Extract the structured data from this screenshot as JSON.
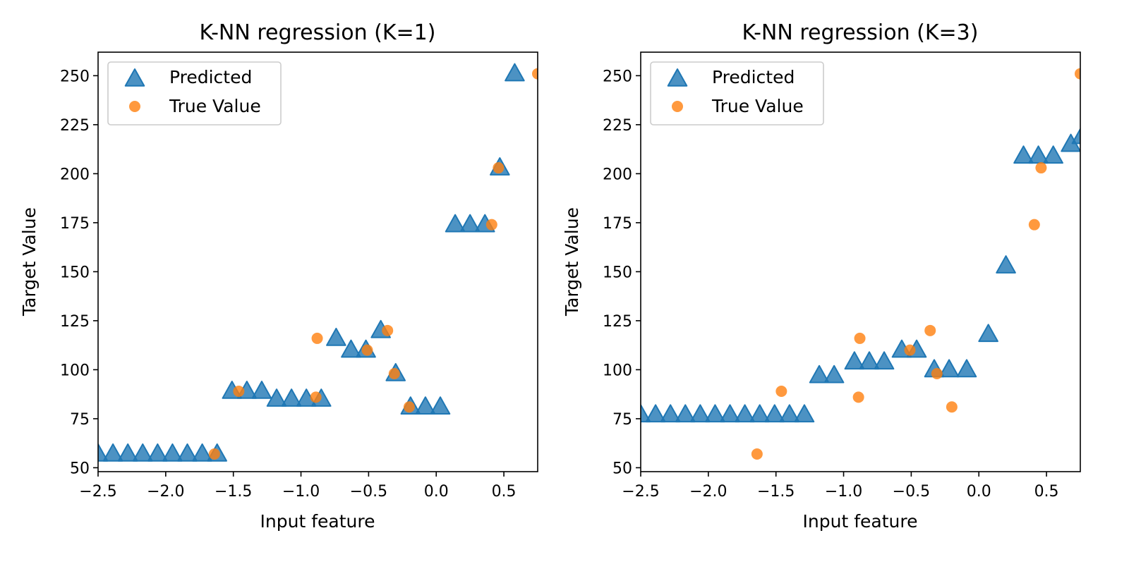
{
  "colors": {
    "predicted": "#1f77b4",
    "true_value": "#ff7f0e"
  },
  "chart_data": [
    {
      "type": "scatter",
      "title": "K-NN regression (K=1)",
      "xlabel": "Input feature",
      "ylabel": "Target Value",
      "xlim": [
        -2.5,
        0.75
      ],
      "ylim": [
        48,
        262
      ],
      "xticks": [
        -2.5,
        -2.0,
        -1.5,
        -1.0,
        -0.5,
        0.0,
        0.5
      ],
      "xtick_labels": [
        "−2.5",
        "−2.0",
        "−1.5",
        "−1.0",
        "−0.5",
        "0.0",
        "0.5"
      ],
      "yticks": [
        50,
        75,
        100,
        125,
        150,
        175,
        200,
        225,
        250
      ],
      "ytick_labels": [
        "50",
        "75",
        "100",
        "125",
        "150",
        "175",
        "200",
        "225",
        "250"
      ],
      "legend_position": "top-left",
      "series": [
        {
          "name": "Predicted",
          "marker": "triangle",
          "points": [
            [
              -2.5,
              57
            ],
            [
              -2.39,
              57
            ],
            [
              -2.28,
              57
            ],
            [
              -2.17,
              57
            ],
            [
              -2.06,
              57
            ],
            [
              -1.95,
              57
            ],
            [
              -1.84,
              57
            ],
            [
              -1.73,
              57
            ],
            [
              -1.62,
              57
            ],
            [
              -1.51,
              89
            ],
            [
              -1.4,
              89
            ],
            [
              -1.29,
              89
            ],
            [
              -1.18,
              85
            ],
            [
              -1.07,
              85
            ],
            [
              -0.96,
              85
            ],
            [
              -0.85,
              85
            ],
            [
              -0.74,
              116
            ],
            [
              -0.63,
              110
            ],
            [
              -0.52,
              110
            ],
            [
              -0.41,
              120
            ],
            [
              -0.3,
              98
            ],
            [
              -0.19,
              81
            ],
            [
              -0.08,
              81
            ],
            [
              0.03,
              81
            ],
            [
              0.14,
              174
            ],
            [
              0.25,
              174
            ],
            [
              0.36,
              174
            ],
            [
              0.47,
              203
            ],
            [
              0.58,
              251
            ]
          ]
        },
        {
          "name": "True Value",
          "marker": "circle",
          "points": [
            [
              -1.64,
              57
            ],
            [
              -1.46,
              89
            ],
            [
              -0.89,
              86
            ],
            [
              -0.88,
              116
            ],
            [
              -0.51,
              110
            ],
            [
              -0.36,
              120
            ],
            [
              -0.31,
              98
            ],
            [
              -0.2,
              81
            ],
            [
              0.41,
              174
            ],
            [
              0.46,
              203
            ],
            [
              0.75,
              251
            ]
          ]
        }
      ]
    },
    {
      "type": "scatter",
      "title": "K-NN regression (K=3)",
      "xlabel": "Input feature",
      "ylabel": "Target Value",
      "xlim": [
        -2.5,
        0.75
      ],
      "ylim": [
        48,
        262
      ],
      "xticks": [
        -2.5,
        -2.0,
        -1.5,
        -1.0,
        -0.5,
        0.0,
        0.5
      ],
      "xtick_labels": [
        "−2.5",
        "−2.0",
        "−1.5",
        "−1.0",
        "−0.5",
        "0.0",
        "0.5"
      ],
      "yticks": [
        50,
        75,
        100,
        125,
        150,
        175,
        200,
        225,
        250
      ],
      "ytick_labels": [
        "50",
        "75",
        "100",
        "125",
        "150",
        "175",
        "200",
        "225",
        "250"
      ],
      "legend_position": "top-left",
      "series": [
        {
          "name": "Predicted",
          "marker": "triangle",
          "points": [
            [
              -2.5,
              77
            ],
            [
              -2.39,
              77
            ],
            [
              -2.28,
              77
            ],
            [
              -2.17,
              77
            ],
            [
              -2.06,
              77
            ],
            [
              -1.95,
              77
            ],
            [
              -1.84,
              77
            ],
            [
              -1.73,
              77
            ],
            [
              -1.62,
              77
            ],
            [
              -1.51,
              77
            ],
            [
              -1.4,
              77
            ],
            [
              -1.29,
              77
            ],
            [
              -1.18,
              97
            ],
            [
              -1.07,
              97
            ],
            [
              -0.92,
              104
            ],
            [
              -0.81,
              104
            ],
            [
              -0.7,
              104
            ],
            [
              -0.57,
              110
            ],
            [
              -0.46,
              110
            ],
            [
              -0.33,
              100
            ],
            [
              -0.22,
              100
            ],
            [
              -0.09,
              100
            ],
            [
              0.07,
              118
            ],
            [
              0.2,
              153
            ],
            [
              0.33,
              209
            ],
            [
              0.44,
              209
            ],
            [
              0.55,
              209
            ],
            [
              0.68,
              215
            ],
            [
              0.76,
              219
            ]
          ]
        },
        {
          "name": "True Value",
          "marker": "circle",
          "points": [
            [
              -1.64,
              57
            ],
            [
              -1.46,
              89
            ],
            [
              -0.89,
              86
            ],
            [
              -0.88,
              116
            ],
            [
              -0.51,
              110
            ],
            [
              -0.36,
              120
            ],
            [
              -0.31,
              98
            ],
            [
              -0.2,
              81
            ],
            [
              0.41,
              174
            ],
            [
              0.46,
              203
            ],
            [
              0.75,
              251
            ]
          ]
        }
      ]
    }
  ]
}
